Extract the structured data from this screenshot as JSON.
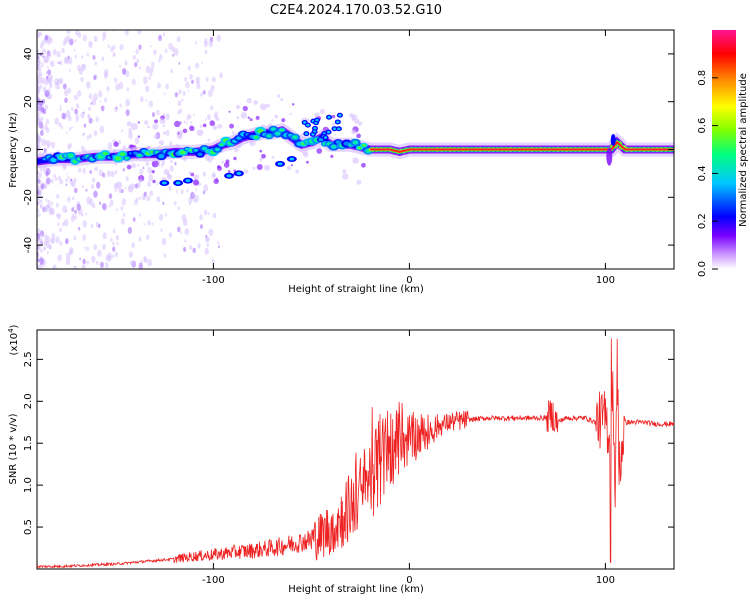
{
  "title": "C2E4.2024.170.03.52.G10",
  "colors": {
    "snr_line": "#ee2222",
    "ridge_core": "#ff1e1e",
    "colormap": [
      "#ffffff",
      "#cc99ff",
      "#7a00ff",
      "#0000ff",
      "#00c8ff",
      "#00ff80",
      "#c8ff00",
      "#ffff00",
      "#ff8000",
      "#ff0000",
      "#ff1493"
    ]
  },
  "chart_data": [
    {
      "type": "heatmap",
      "xlabel": "Height of straight line (km)",
      "ylabel": "Frequency (Hz)",
      "xlim": [
        -190,
        135
      ],
      "ylim": [
        -50,
        50
      ],
      "xticks": [
        -100,
        0,
        100
      ],
      "yticks": [
        -40,
        -20,
        0,
        20,
        40
      ],
      "grid": false,
      "ridge": {
        "x": [
          -190,
          -180,
          -170,
          -160,
          -150,
          -140,
          -130,
          -120,
          -110,
          -100,
          -95,
          -90,
          -85,
          -80,
          -75,
          -70,
          -65,
          -60,
          -55,
          -50,
          -45,
          -40,
          -35,
          -30,
          -25,
          -20,
          -15,
          -10,
          -5,
          0,
          5,
          10,
          20,
          40,
          60,
          80,
          95,
          100,
          103,
          106,
          110,
          120,
          135
        ],
        "y": [
          -5,
          -4,
          -4,
          -3,
          -3,
          -2,
          -2,
          -1,
          -1,
          0,
          2,
          3,
          5,
          6,
          7,
          7,
          8,
          5,
          2,
          3,
          5,
          2,
          2,
          2,
          1,
          0,
          0,
          0,
          -1,
          0,
          0,
          0,
          0,
          0,
          0,
          0,
          0,
          0,
          0,
          3,
          0,
          0,
          0
        ]
      },
      "colorbar": {
        "label": "Normalized spectral amplitude",
        "range": [
          0,
          1
        ],
        "ticks": [
          "0.0",
          "0.2",
          "0.4",
          "0.6",
          "0.8"
        ],
        "tick_values": [
          0,
          0.2,
          0.4,
          0.6,
          0.8
        ]
      }
    },
    {
      "type": "line",
      "xlabel": "Height of straight line (km)",
      "ylabel": "SNR (10 * v/v)",
      "y_multiplier": "(x10",
      "y_multiplier_exp": "4",
      "y_multiplier_close": ")",
      "xlim": [
        -190,
        135
      ],
      "ylim": [
        0,
        2.85
      ],
      "xticks": [
        -100,
        0,
        100
      ],
      "yticks": [
        0.5,
        1.0,
        1.5,
        2.0,
        2.5
      ],
      "ytick_labels": [
        "0.5",
        "1.0",
        "1.5",
        "2.0",
        "2.5"
      ],
      "grid": false,
      "series": [
        {
          "x": [
            -190,
            -180,
            -170,
            -160,
            -150,
            -140,
            -130,
            -120,
            -110,
            -100,
            -90,
            -80,
            -70,
            -60,
            -50,
            -45,
            -40,
            -35,
            -30,
            -25,
            -20,
            -15,
            -10,
            -5,
            0,
            5,
            10,
            15,
            20,
            30,
            40,
            50,
            60,
            70,
            73,
            75,
            80,
            90,
            95,
            100,
            102,
            104,
            105,
            106,
            107,
            110,
            115,
            120,
            125,
            130,
            135
          ],
          "y": [
            0.03,
            0.03,
            0.04,
            0.05,
            0.06,
            0.08,
            0.1,
            0.12,
            0.15,
            0.17,
            0.2,
            0.22,
            0.25,
            0.3,
            0.35,
            0.4,
            0.5,
            0.6,
            0.75,
            0.9,
            1.1,
            1.25,
            1.4,
            1.5,
            1.55,
            1.6,
            1.65,
            1.7,
            1.75,
            1.78,
            1.8,
            1.8,
            1.8,
            1.8,
            1.85,
            1.75,
            1.8,
            1.8,
            1.75,
            1.8,
            1.6,
            2.2,
            0.6,
            2.6,
            1.2,
            1.75,
            1.75,
            1.75,
            1.73,
            1.73,
            1.73
          ]
        }
      ]
    }
  ]
}
